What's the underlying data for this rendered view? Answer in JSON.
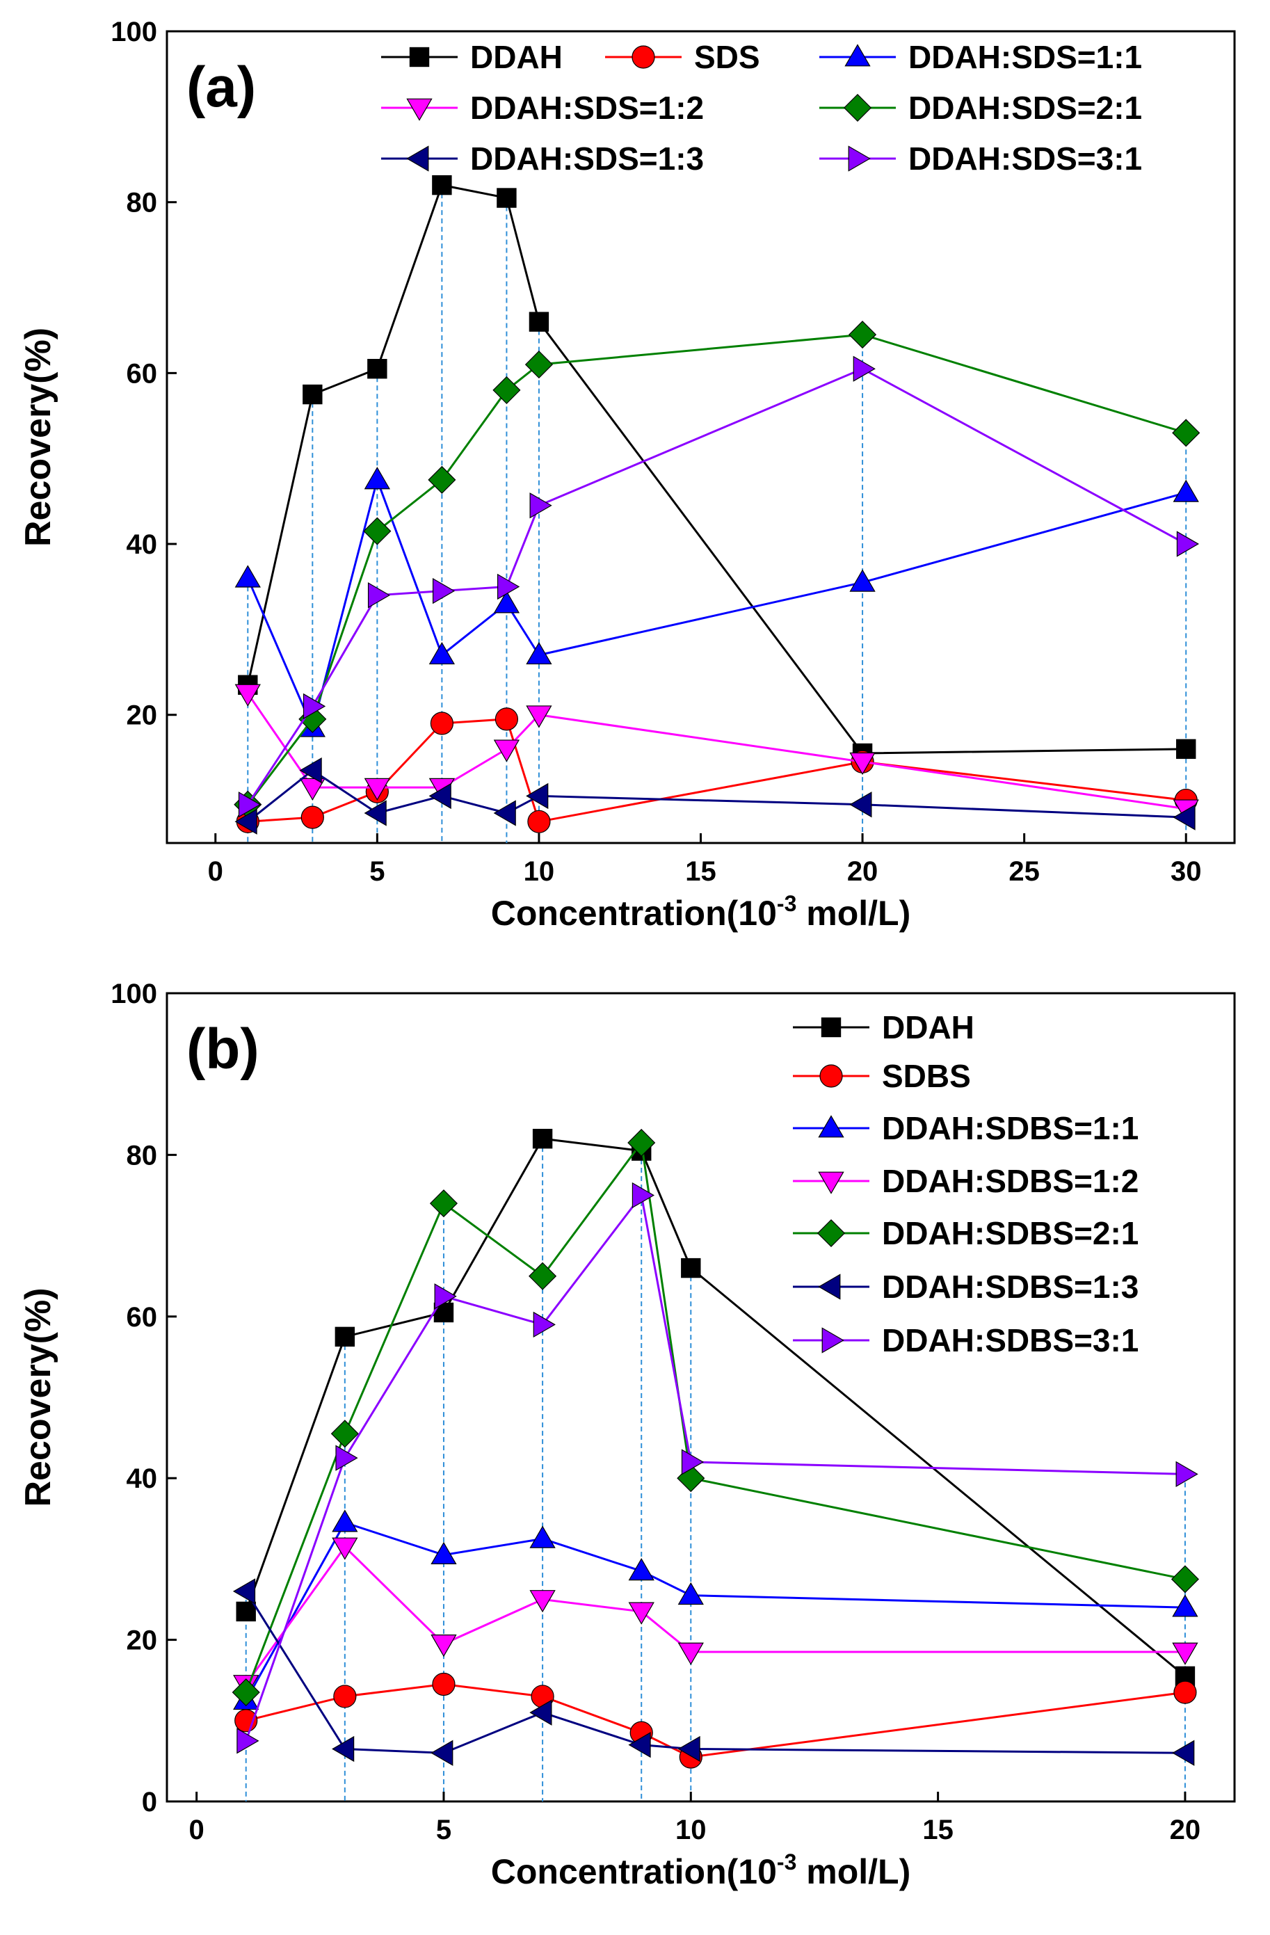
{
  "chart_data": [
    {
      "type": "line",
      "panel_label": "(a)",
      "xlabel_main": "Concentration(10",
      "xlabel_sup": "-3",
      "xlabel_tail": " mol/L)",
      "ylabel": "Recovery(%)",
      "xlim": [
        -1.5,
        31.5
      ],
      "ylim": [
        5,
        100
      ],
      "xticks": [
        0,
        5,
        10,
        15,
        20,
        25,
        30
      ],
      "yticks": [
        20,
        40,
        60,
        80,
        100
      ],
      "x": [
        1,
        3,
        5,
        7,
        9,
        10,
        20,
        30
      ],
      "dashed_guides_x": [
        1,
        3,
        5,
        7,
        9,
        10,
        20,
        30
      ],
      "legend_location": "top, three columns",
      "series": [
        {
          "name": "DDAH",
          "color": "#000000",
          "marker": "square",
          "values": [
            23.5,
            57.5,
            60.5,
            82,
            80.5,
            66,
            15.5,
            16
          ]
        },
        {
          "name": "SDS",
          "color": "#ff0000",
          "marker": "circle",
          "values": [
            7.5,
            8,
            11,
            19,
            19.5,
            7.5,
            14.5,
            10
          ]
        },
        {
          "name": "DDAH:SDS=1:1",
          "color": "#0000ff",
          "marker": "triangle-up",
          "values": [
            36,
            18.5,
            47.5,
            27,
            33,
            27,
            35.5,
            46
          ]
        },
        {
          "name": "DDAH:SDS=1:2",
          "color": "#ff00ff",
          "marker": "triangle-down",
          "values": [
            22.5,
            11.5,
            11.5,
            11.5,
            16,
            20,
            14.5,
            9
          ]
        },
        {
          "name": "DDAH:SDS=2:1",
          "color": "#008000",
          "marker": "diamond",
          "values": [
            9.5,
            19.5,
            41.5,
            47.5,
            58,
            61,
            64.5,
            53
          ]
        },
        {
          "name": "DDAH:SDS=1:3",
          "color": "#000080",
          "marker": "triangle-left",
          "values": [
            7.5,
            13.5,
            8.5,
            10.5,
            8.5,
            10.5,
            9.5,
            8
          ]
        },
        {
          "name": "DDAH:SDS=3:1",
          "color": "#8b00ff",
          "marker": "triangle-right",
          "values": [
            9.5,
            21,
            34,
            34.5,
            35,
            44.5,
            60.5,
            40
          ]
        }
      ]
    },
    {
      "type": "line",
      "panel_label": "(b)",
      "xlabel_main": "Concentration(10",
      "xlabel_sup": "-3",
      "xlabel_tail": " mol/L)",
      "ylabel": "Recovery(%)",
      "xlim": [
        -0.6,
        21
      ],
      "ylim": [
        0,
        100
      ],
      "xticks": [
        0,
        5,
        10,
        15,
        20
      ],
      "yticks": [
        0,
        20,
        40,
        60,
        80,
        100
      ],
      "x": [
        1,
        3,
        5,
        7,
        9,
        10,
        20
      ],
      "dashed_guides_x": [
        1,
        3,
        5,
        7,
        9,
        10,
        20
      ],
      "legend_location": "top-right, single column",
      "series": [
        {
          "name": "DDAH",
          "color": "#000000",
          "marker": "square",
          "values": [
            23.5,
            57.5,
            60.5,
            82,
            80.5,
            66,
            15.5
          ]
        },
        {
          "name": "SDBS",
          "color": "#ff0000",
          "marker": "circle",
          "values": [
            10,
            13,
            14.5,
            13,
            8.5,
            5.5,
            13.5
          ]
        },
        {
          "name": "DDAH:SDBS=1:1",
          "color": "#0000ff",
          "marker": "triangle-up",
          "values": [
            12.5,
            34.5,
            30.5,
            32.5,
            28.5,
            25.5,
            24
          ]
        },
        {
          "name": "DDAH:SDBS=1:2",
          "color": "#ff00ff",
          "marker": "triangle-down",
          "values": [
            14.5,
            31.5,
            19.5,
            25,
            23.5,
            18.5,
            18.5
          ]
        },
        {
          "name": "DDAH:SDBS=2:1",
          "color": "#008000",
          "marker": "diamond",
          "values": [
            13.5,
            45.5,
            74,
            65,
            81.5,
            40,
            27.5
          ]
        },
        {
          "name": "DDAH:SDBS=1:3",
          "color": "#000080",
          "marker": "triangle-left",
          "values": [
            26,
            6.5,
            6,
            11,
            7,
            6.5,
            6
          ]
        },
        {
          "name": "DDAH:SDBS=3:1",
          "color": "#8b00ff",
          "marker": "triangle-right",
          "values": [
            7.5,
            42.5,
            62.5,
            59,
            75,
            42,
            40.5
          ]
        }
      ]
    }
  ]
}
